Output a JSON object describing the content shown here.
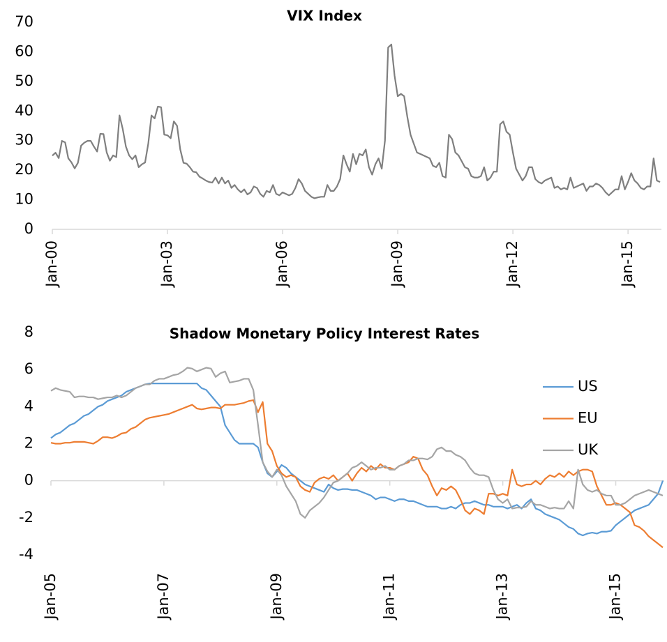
{
  "chart_data": [
    {
      "type": "line",
      "title": "VIX Index",
      "categories": [
        "Jan-00",
        null,
        null,
        null,
        null,
        null,
        null,
        null,
        null,
        null,
        null,
        null,
        null,
        null,
        null,
        null,
        null,
        null,
        null,
        null,
        null,
        null,
        null,
        null,
        null,
        null,
        null,
        null,
        null,
        null,
        null,
        null,
        null,
        null,
        null,
        null,
        "Jan-03",
        null,
        null,
        null,
        null,
        null,
        null,
        null,
        null,
        null,
        null,
        null,
        null,
        null,
        null,
        null,
        null,
        null,
        null,
        null,
        null,
        null,
        null,
        null,
        null,
        null,
        null,
        null,
        null,
        null,
        null,
        null,
        null,
        null,
        null,
        null,
        "Jan-06",
        null,
        null,
        null,
        null,
        null,
        null,
        null,
        null,
        null,
        null,
        null,
        null,
        null,
        null,
        null,
        null,
        null,
        null,
        null,
        null,
        null,
        null,
        null,
        null,
        null,
        null,
        null,
        null,
        null,
        null,
        null,
        null,
        null,
        null,
        null,
        "Jan-09",
        null,
        null,
        null,
        null,
        null,
        null,
        null,
        null,
        null,
        null,
        null,
        null,
        null,
        null,
        null,
        null,
        null,
        null,
        null,
        null,
        null,
        null,
        null,
        null,
        null,
        null,
        null,
        null,
        null,
        null,
        null,
        null,
        null,
        null,
        null,
        "Jan-12",
        null,
        null,
        null,
        null,
        null,
        null,
        null,
        null,
        null,
        null,
        null,
        null,
        null,
        null,
        null,
        null,
        null,
        null,
        null,
        null,
        null,
        null,
        null,
        null,
        null,
        null,
        null,
        null,
        null,
        null,
        null,
        null,
        null,
        null,
        null,
        "Jan-15",
        null,
        null,
        null,
        null,
        null,
        null,
        null,
        null,
        null,
        null
      ],
      "series": [
        {
          "name": "VIX",
          "color": "#7f7f7f",
          "values": [
            24.9,
            25.9,
            24.1,
            29.9,
            29.4,
            24.0,
            22.6,
            20.6,
            22.5,
            28.3,
            29.3,
            29.9,
            29.9,
            28.0,
            26.3,
            32.3,
            32.2,
            26.0,
            23.2,
            25.0,
            24.4,
            38.5,
            34.0,
            28.0,
            25.0,
            23.7,
            25.0,
            21.0,
            22.0,
            22.6,
            29.0,
            38.5,
            37.5,
            41.5,
            41.3,
            32.0,
            31.8,
            30.8,
            36.5,
            35.0,
            27.0,
            22.5,
            22.2,
            21.0,
            19.5,
            19.3,
            17.8,
            17.2,
            16.5,
            16.0,
            15.8,
            17.5,
            15.5,
            17.5,
            15.5,
            16.5,
            14.0,
            15.0,
            13.5,
            12.5,
            13.5,
            11.8,
            12.5,
            14.5,
            14.0,
            12.0,
            11.0,
            13.0,
            12.5,
            15.0,
            12.0,
            11.5,
            12.5,
            12.0,
            11.5,
            12.0,
            14.0,
            17.0,
            15.5,
            13.0,
            12.0,
            11.0,
            10.5,
            10.8,
            11.0,
            11.0,
            15.0,
            13.0,
            13.0,
            14.5,
            17.0,
            25.0,
            22.0,
            19.5,
            25.5,
            22.0,
            25.5,
            25.0,
            27.0,
            21.0,
            18.5,
            22.0,
            24.0,
            20.5,
            30.0,
            61.5,
            62.5,
            52.0,
            45.0,
            45.8,
            45.0,
            38.0,
            32.0,
            29.0,
            26.0,
            25.5,
            25.0,
            24.5,
            24.0,
            21.5,
            21.0,
            22.5,
            18.0,
            17.5,
            32.0,
            30.5,
            26.0,
            25.0,
            23.0,
            21.0,
            20.5,
            18.0,
            17.5,
            17.5,
            18.0,
            21.0,
            16.5,
            17.5,
            19.5,
            19.5,
            35.5,
            36.5,
            33.0,
            32.0,
            26.0,
            20.5,
            18.5,
            16.5,
            18.0,
            21.0,
            21.0,
            17.0,
            16.0,
            15.5,
            16.5,
            17.0,
            17.5,
            14.0,
            14.5,
            13.5,
            14.0,
            13.5,
            17.5,
            14.0,
            14.5,
            15.0,
            15.5,
            13.0,
            14.5,
            14.5,
            15.5,
            15.0,
            14.0,
            12.5,
            11.5,
            12.5,
            13.5,
            13.5,
            18.0,
            13.5,
            16.0,
            19.0,
            16.5,
            15.5,
            14.0,
            13.5,
            14.5,
            14.5,
            24.0,
            16.5,
            16.0
          ]
        }
      ],
      "ylim": [
        0,
        70
      ],
      "yticks": [
        0,
        10,
        20,
        30,
        40,
        50,
        60,
        70
      ],
      "grid": false,
      "legend": false
    },
    {
      "type": "line",
      "title": "Shadow Monetary Policy Interest Rates",
      "categories": [
        "Jan-05",
        null,
        null,
        null,
        null,
        null,
        null,
        null,
        null,
        null,
        null,
        null,
        null,
        null,
        null,
        null,
        null,
        null,
        null,
        null,
        null,
        null,
        null,
        null,
        "Jan-07",
        null,
        null,
        null,
        null,
        null,
        null,
        null,
        null,
        null,
        null,
        null,
        null,
        null,
        null,
        null,
        null,
        null,
        null,
        null,
        null,
        null,
        null,
        null,
        "Jan-09",
        null,
        null,
        null,
        null,
        null,
        null,
        null,
        null,
        null,
        null,
        null,
        null,
        null,
        null,
        null,
        null,
        null,
        null,
        null,
        null,
        null,
        null,
        null,
        "Jan-11",
        null,
        null,
        null,
        null,
        null,
        null,
        null,
        null,
        null,
        null,
        null,
        null,
        null,
        null,
        null,
        null,
        null,
        null,
        null,
        null,
        null,
        null,
        null,
        "Jan-13",
        null,
        null,
        null,
        null,
        null,
        null,
        null,
        null,
        null,
        null,
        null,
        null,
        null,
        null,
        null,
        null,
        null,
        null,
        null,
        null,
        null,
        null,
        null,
        "Jan-15",
        null,
        null,
        null,
        null,
        null,
        null,
        null,
        null,
        null,
        null
      ],
      "series": [
        {
          "name": "US",
          "color": "#5b9bd5",
          "values": [
            2.3,
            2.5,
            2.6,
            2.8,
            3.0,
            3.1,
            3.3,
            3.5,
            3.6,
            3.8,
            4.0,
            4.1,
            4.3,
            4.4,
            4.5,
            4.6,
            4.8,
            4.9,
            5.0,
            5.1,
            5.2,
            5.25,
            5.25,
            5.25,
            5.25,
            5.25,
            5.25,
            5.25,
            5.25,
            5.25,
            5.25,
            5.25,
            5.0,
            4.9,
            4.6,
            4.3,
            4.0,
            3.0,
            2.6,
            2.2,
            2.0,
            2.0,
            2.0,
            2.0,
            1.8,
            1.0,
            0.4,
            0.2,
            0.5,
            0.85,
            0.7,
            0.4,
            0.2,
            0.0,
            -0.2,
            -0.3,
            -0.4,
            -0.5,
            -0.6,
            -0.2,
            -0.4,
            -0.5,
            -0.45,
            -0.45,
            -0.5,
            -0.5,
            -0.6,
            -0.7,
            -0.8,
            -1.0,
            -0.9,
            -0.9,
            -1.0,
            -1.1,
            -1.0,
            -1.0,
            -1.1,
            -1.1,
            -1.2,
            -1.3,
            -1.4,
            -1.4,
            -1.4,
            -1.5,
            -1.5,
            -1.4,
            -1.5,
            -1.3,
            -1.2,
            -1.2,
            -1.1,
            -1.2,
            -1.3,
            -1.3,
            -1.4,
            -1.4,
            -1.4,
            -1.5,
            -1.4,
            -1.3,
            -1.5,
            -1.2,
            -1.0,
            -1.5,
            -1.6,
            -1.8,
            -1.9,
            -2.0,
            -2.1,
            -2.3,
            -2.5,
            -2.6,
            -2.85,
            -2.95,
            -2.85,
            -2.8,
            -2.85,
            -2.75,
            -2.75,
            -2.7,
            -2.4,
            -2.2,
            -2.0,
            -1.8,
            -1.6,
            -1.5,
            -1.4,
            -1.3,
            -1.0,
            -0.7,
            0.0
          ]
        },
        {
          "name": "EU",
          "color": "#ed7d31",
          "values": [
            2.05,
            2.0,
            2.0,
            2.05,
            2.05,
            2.1,
            2.1,
            2.1,
            2.05,
            2.0,
            2.15,
            2.35,
            2.35,
            2.3,
            2.4,
            2.55,
            2.6,
            2.8,
            2.9,
            3.1,
            3.3,
            3.4,
            3.45,
            3.5,
            3.55,
            3.6,
            3.7,
            3.8,
            3.9,
            4.0,
            4.1,
            3.9,
            3.85,
            3.9,
            3.95,
            3.95,
            3.9,
            4.1,
            4.1,
            4.1,
            4.15,
            4.2,
            4.3,
            4.35,
            3.7,
            4.25,
            2.0,
            1.6,
            0.8,
            0.4,
            0.2,
            0.3,
            0.2,
            -0.3,
            -0.5,
            -0.6,
            -0.1,
            0.1,
            0.2,
            0.1,
            0.3,
            0.0,
            0.2,
            0.4,
            0.0,
            0.4,
            0.7,
            0.5,
            0.8,
            0.6,
            0.9,
            0.7,
            0.7,
            0.6,
            0.8,
            0.9,
            1.0,
            1.3,
            1.2,
            0.6,
            0.3,
            -0.3,
            -0.8,
            -0.4,
            -0.5,
            -0.3,
            -0.5,
            -1.0,
            -1.6,
            -1.8,
            -1.5,
            -1.6,
            -1.8,
            -0.7,
            -0.7,
            -0.8,
            -0.7,
            -0.8,
            0.6,
            -0.2,
            -0.3,
            -0.2,
            -0.2,
            0.0,
            -0.2,
            0.1,
            0.3,
            0.2,
            0.4,
            0.2,
            0.5,
            0.3,
            0.5,
            0.6,
            0.6,
            0.5,
            -0.3,
            -0.8,
            -1.3,
            -1.3,
            -1.2,
            -1.3,
            -1.5,
            -1.7,
            -2.4,
            -2.5,
            -2.7,
            -3.0,
            -3.2,
            -3.4,
            -3.6
          ]
        },
        {
          "name": "UK",
          "color": "#a5a5a5",
          "values": [
            4.85,
            5.0,
            4.9,
            4.85,
            4.8,
            4.5,
            4.55,
            4.55,
            4.5,
            4.5,
            4.4,
            4.45,
            4.5,
            4.5,
            4.6,
            4.5,
            4.6,
            4.8,
            5.0,
            5.1,
            5.2,
            5.2,
            5.4,
            5.5,
            5.5,
            5.6,
            5.7,
            5.75,
            5.9,
            6.1,
            6.05,
            5.9,
            6.0,
            6.1,
            6.05,
            5.6,
            5.8,
            5.9,
            5.3,
            5.35,
            5.4,
            5.5,
            5.5,
            4.9,
            3.0,
            1.0,
            0.5,
            0.2,
            0.6,
            0.3,
            -0.3,
            -0.7,
            -1.1,
            -1.8,
            -2.0,
            -1.6,
            -1.4,
            -1.2,
            -0.9,
            -0.5,
            -0.1,
            0.0,
            0.2,
            0.4,
            0.7,
            0.8,
            1.0,
            0.8,
            0.6,
            0.7,
            0.7,
            0.8,
            0.6,
            0.6,
            0.8,
            0.9,
            1.1,
            1.1,
            1.2,
            1.2,
            1.15,
            1.3,
            1.7,
            1.8,
            1.6,
            1.6,
            1.4,
            1.3,
            1.1,
            0.7,
            0.4,
            0.3,
            0.3,
            0.2,
            -0.5,
            -1.0,
            -1.2,
            -1.0,
            -1.5,
            -1.45,
            -1.45,
            -1.4,
            -1.1,
            -1.3,
            -1.3,
            -1.4,
            -1.5,
            -1.45,
            -1.5,
            -1.5,
            -1.1,
            -1.5,
            0.6,
            -0.2,
            -0.5,
            -0.6,
            -0.5,
            -0.7,
            -0.8,
            -0.8,
            -1.3,
            -1.3,
            -1.2,
            -1.0,
            -0.8,
            -0.7,
            -0.6,
            -0.5,
            -0.6,
            -0.7,
            -0.8
          ]
        }
      ],
      "ylim": [
        -4,
        8
      ],
      "yticks": [
        -4,
        -2,
        0,
        2,
        4,
        6,
        8
      ],
      "grid": false,
      "legend": "right"
    }
  ]
}
